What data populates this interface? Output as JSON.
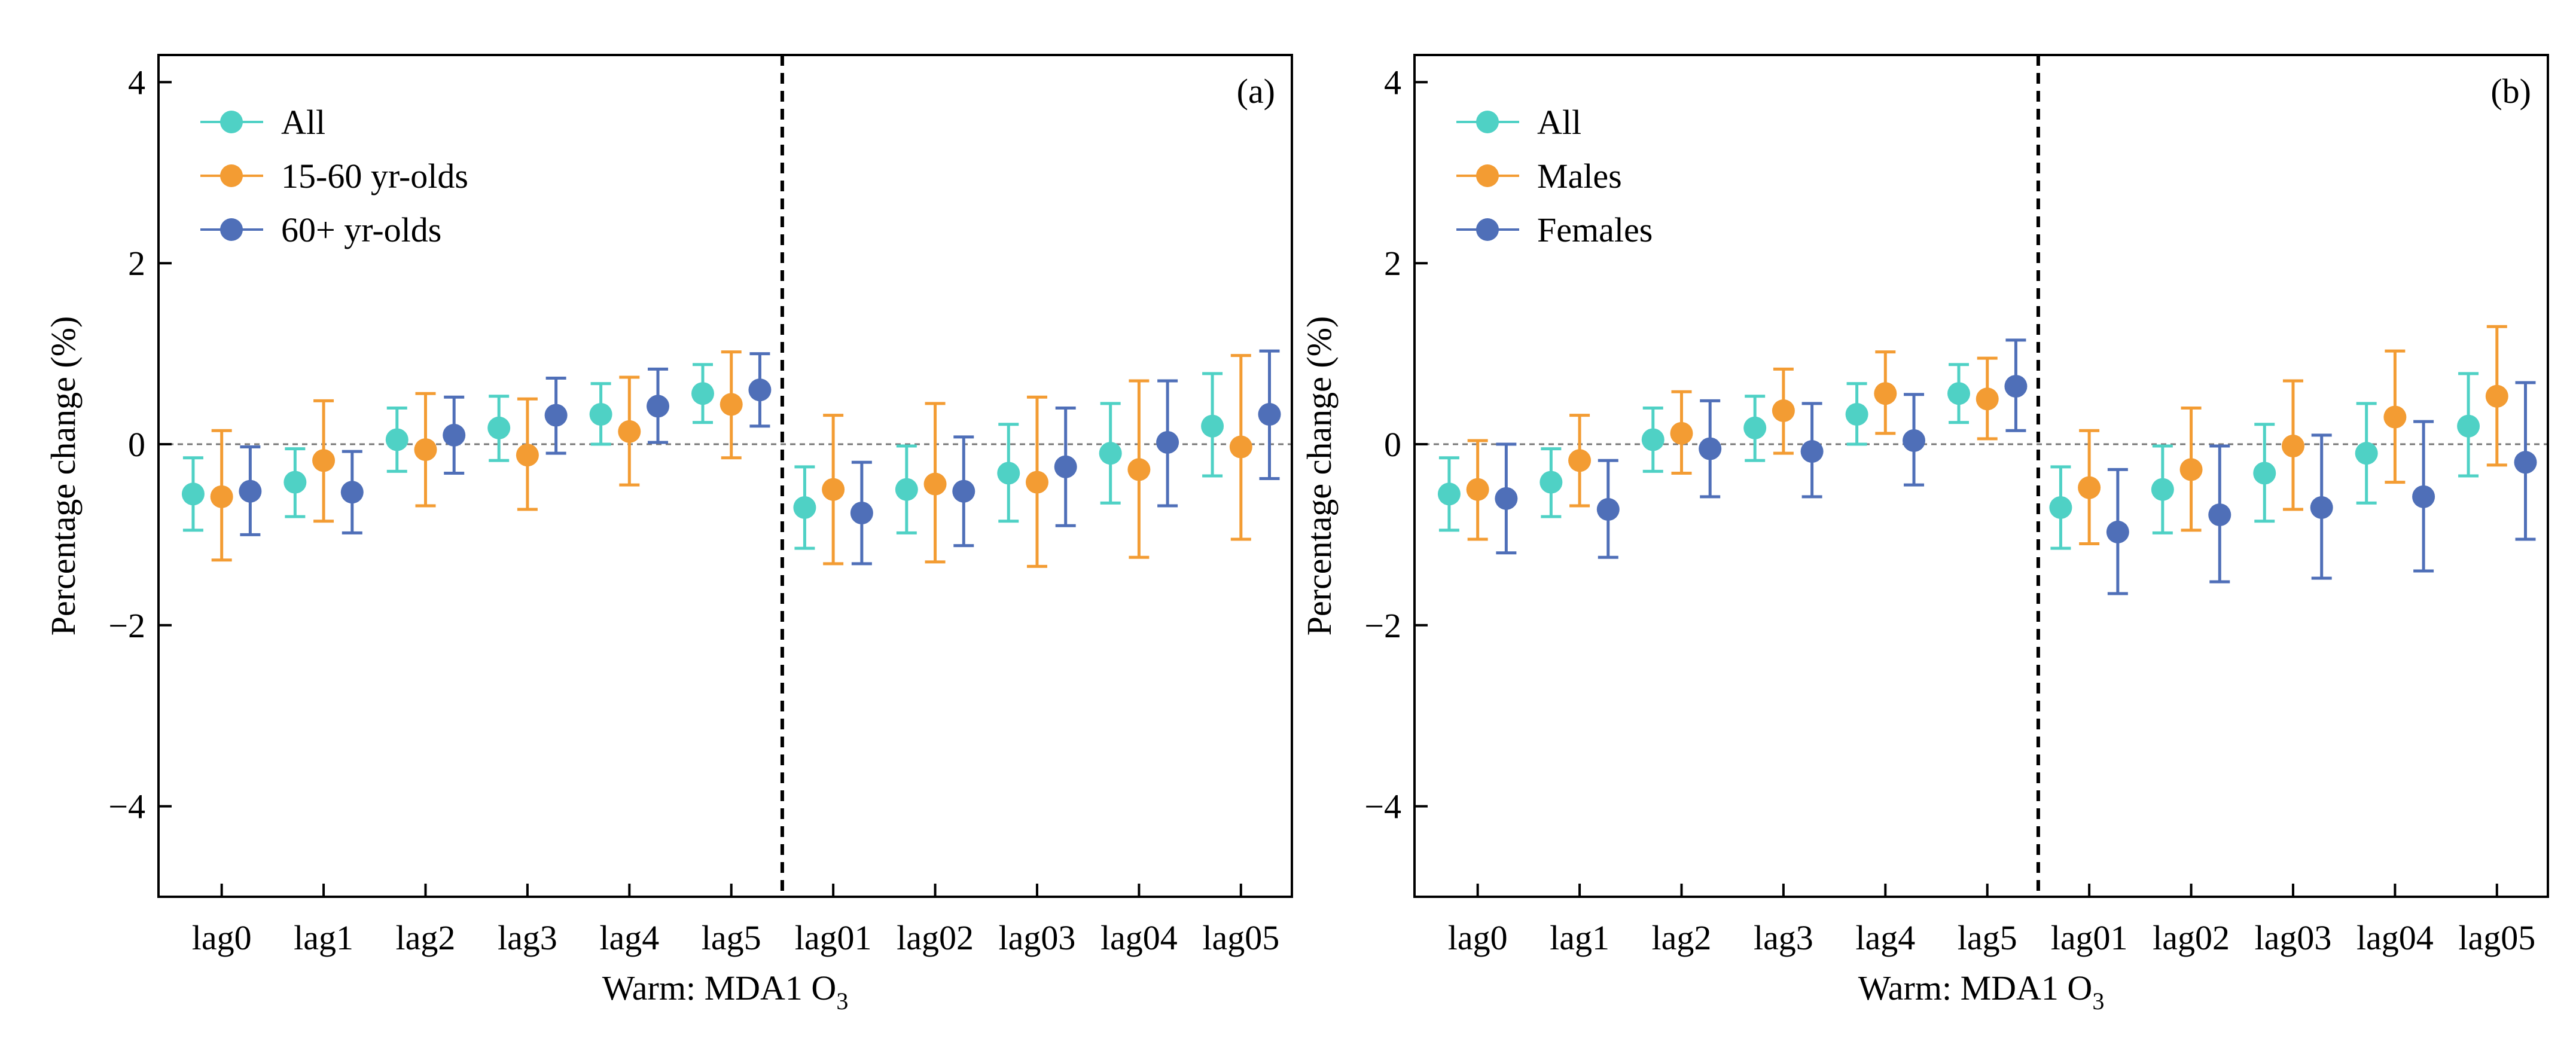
{
  "figure": {
    "description_free": true
  },
  "colors": {
    "All": "#4fd1c5",
    "15-60 yr-olds": "#f39c33",
    "60+ yr-olds": "#4f6fb8",
    "Males": "#f39c33",
    "Females": "#4f6fb8"
  },
  "chart_data": [
    {
      "type": "scatter",
      "panel_label": "(a)",
      "xlabel_main": "Warm: MDA1 O",
      "xlabel_sub": "3",
      "ylabel": "Percentage change (%)",
      "ylim": [
        -5,
        4.3
      ],
      "yticks": [
        -4,
        -2,
        0,
        2,
        4
      ],
      "ytick_labels": [
        "−4",
        "−2",
        "0",
        "2",
        "4"
      ],
      "categories": [
        "lag0",
        "lag1",
        "lag2",
        "lag3",
        "lag4",
        "lag5",
        "lag01",
        "lag02",
        "lag03",
        "lag04",
        "lag05"
      ],
      "divider_after_index": 5,
      "legend_position": "top-left",
      "series": [
        {
          "name": "All",
          "values": [
            -0.55,
            -0.42,
            0.05,
            0.18,
            0.33,
            0.56,
            -0.7,
            -0.5,
            -0.32,
            -0.1,
            0.2
          ],
          "lower": [
            -0.95,
            -0.8,
            -0.3,
            -0.18,
            0.0,
            0.24,
            -1.15,
            -0.98,
            -0.85,
            -0.65,
            -0.35
          ],
          "upper": [
            -0.15,
            -0.05,
            0.4,
            0.53,
            0.67,
            0.88,
            -0.25,
            -0.02,
            0.22,
            0.45,
            0.78
          ]
        },
        {
          "name": "15-60 yr-olds",
          "values": [
            -0.58,
            -0.18,
            -0.06,
            -0.12,
            0.14,
            0.44,
            -0.5,
            -0.44,
            -0.42,
            -0.28,
            -0.03
          ],
          "lower": [
            -1.28,
            -0.85,
            -0.68,
            -0.72,
            -0.45,
            -0.15,
            -1.32,
            -1.3,
            -1.35,
            -1.25,
            -1.05
          ],
          "upper": [
            0.15,
            0.48,
            0.56,
            0.5,
            0.74,
            1.02,
            0.32,
            0.45,
            0.52,
            0.7,
            0.98
          ]
        },
        {
          "name": "60+ yr-olds",
          "values": [
            -0.52,
            -0.53,
            0.1,
            0.32,
            0.42,
            0.6,
            -0.76,
            -0.52,
            -0.25,
            0.02,
            0.33
          ],
          "lower": [
            -1.0,
            -0.98,
            -0.32,
            -0.1,
            0.02,
            0.2,
            -1.32,
            -1.12,
            -0.9,
            -0.68,
            -0.38
          ],
          "upper": [
            -0.03,
            -0.08,
            0.52,
            0.73,
            0.83,
            1.0,
            -0.2,
            0.08,
            0.4,
            0.7,
            1.03
          ]
        }
      ]
    },
    {
      "type": "scatter",
      "panel_label": "(b)",
      "xlabel_main": "Warm: MDA1 O",
      "xlabel_sub": "3",
      "ylabel": "Percentage change (%)",
      "ylim": [
        -5,
        4.3
      ],
      "yticks": [
        -4,
        -2,
        0,
        2,
        4
      ],
      "ytick_labels": [
        "−4",
        "−2",
        "0",
        "2",
        "4"
      ],
      "categories": [
        "lag0",
        "lag1",
        "lag2",
        "lag3",
        "lag4",
        "lag5",
        "lag01",
        "lag02",
        "lag03",
        "lag04",
        "lag05"
      ],
      "divider_after_index": 5,
      "legend_position": "top-left",
      "series": [
        {
          "name": "All",
          "values": [
            -0.55,
            -0.42,
            0.05,
            0.18,
            0.33,
            0.56,
            -0.7,
            -0.5,
            -0.32,
            -0.1,
            0.2
          ],
          "lower": [
            -0.95,
            -0.8,
            -0.3,
            -0.18,
            0.0,
            0.24,
            -1.15,
            -0.98,
            -0.85,
            -0.65,
            -0.35
          ],
          "upper": [
            -0.15,
            -0.05,
            0.4,
            0.53,
            0.67,
            0.88,
            -0.25,
            -0.02,
            0.22,
            0.45,
            0.78
          ]
        },
        {
          "name": "Males",
          "values": [
            -0.5,
            -0.18,
            0.12,
            0.37,
            0.56,
            0.5,
            -0.48,
            -0.28,
            -0.02,
            0.3,
            0.53
          ],
          "lower": [
            -1.05,
            -0.68,
            -0.32,
            -0.1,
            0.12,
            0.06,
            -1.1,
            -0.95,
            -0.72,
            -0.42,
            -0.23
          ],
          "upper": [
            0.04,
            0.32,
            0.58,
            0.83,
            1.02,
            0.95,
            0.15,
            0.4,
            0.7,
            1.03,
            1.3
          ]
        },
        {
          "name": "Females",
          "values": [
            -0.6,
            -0.72,
            -0.05,
            -0.08,
            0.04,
            0.64,
            -0.97,
            -0.78,
            -0.7,
            -0.58,
            -0.2
          ],
          "lower": [
            -1.2,
            -1.25,
            -0.58,
            -0.58,
            -0.45,
            0.15,
            -1.65,
            -1.52,
            -1.48,
            -1.4,
            -1.05
          ],
          "upper": [
            0.0,
            -0.18,
            0.48,
            0.45,
            0.55,
            1.15,
            -0.28,
            -0.02,
            0.1,
            0.25,
            0.68
          ]
        }
      ]
    }
  ]
}
